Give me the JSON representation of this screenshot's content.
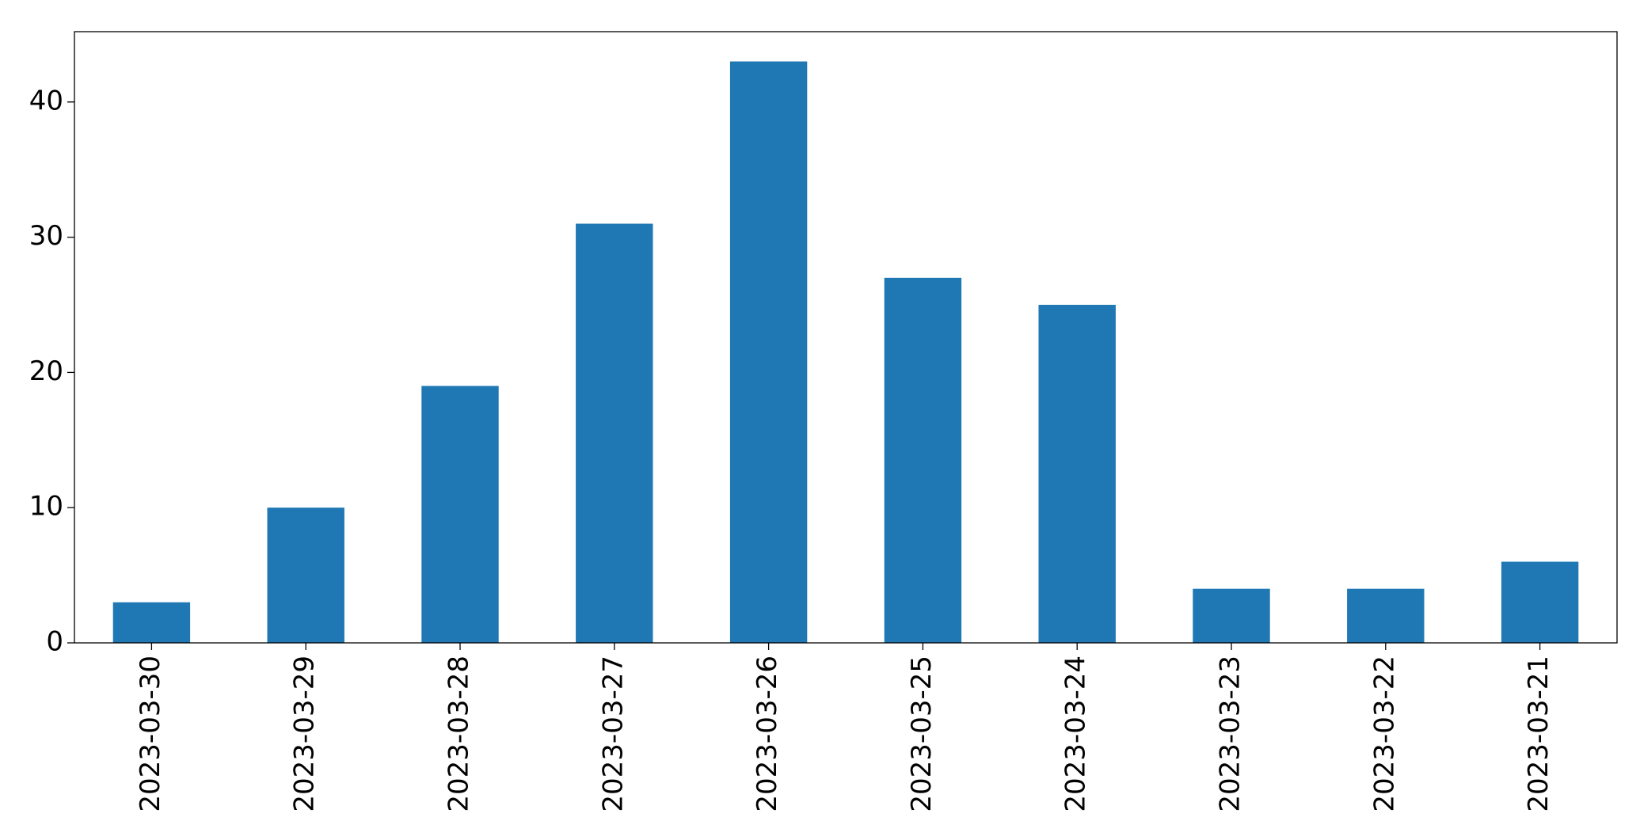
{
  "chart_data": {
    "type": "bar",
    "categories": [
      "2023-03-30",
      "2023-03-29",
      "2023-03-28",
      "2023-03-27",
      "2023-03-26",
      "2023-03-25",
      "2023-03-24",
      "2023-03-23",
      "2023-03-22",
      "2023-03-21"
    ],
    "values": [
      3,
      10,
      19,
      31,
      43,
      27,
      25,
      4,
      4,
      6
    ],
    "color": "#1f77b4",
    "ylim": [
      0,
      45.2
    ],
    "yticks": [
      0,
      10,
      20,
      30,
      40
    ],
    "grid": false
  }
}
